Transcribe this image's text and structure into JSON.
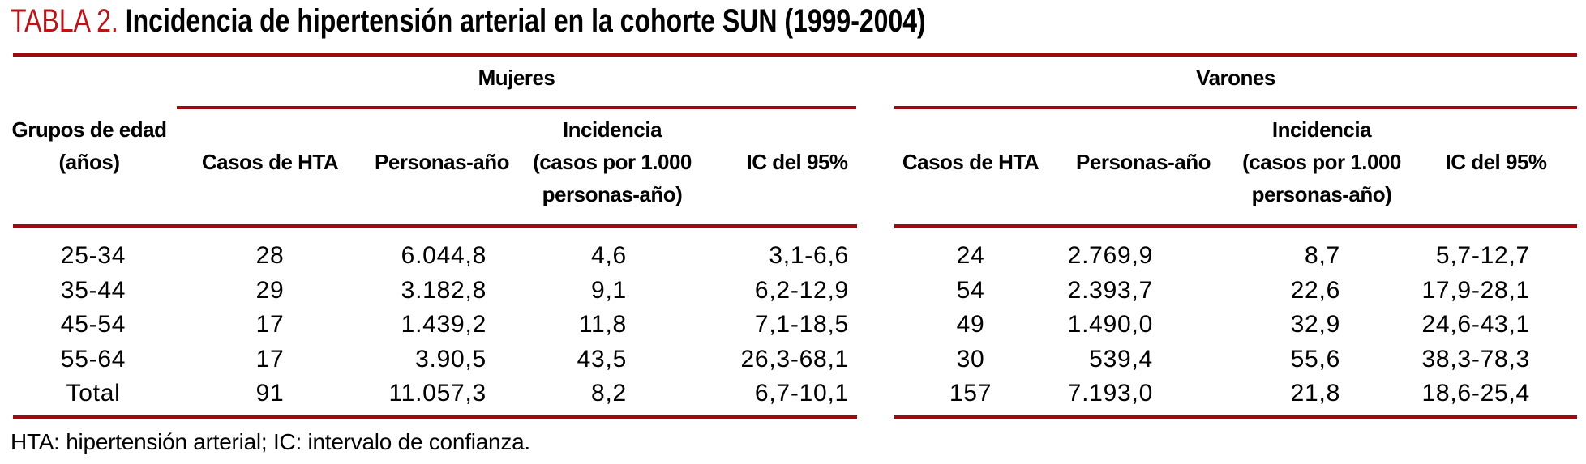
{
  "title": {
    "label": "TABLA 2.",
    "text": " Incidencia de hipertensión arterial en la cohorte SUN (1999-2004)"
  },
  "groups": {
    "mujeres": "Mujeres",
    "varones": "Varones"
  },
  "columns": {
    "age_line1": "Grupos de edad",
    "age_line2": "(años)",
    "casos": "Casos de HTA",
    "personas": "Personas-año",
    "incidencia_line1": "Incidencia",
    "incidencia_line2": "(casos por 1.000",
    "incidencia_line3": "personas-año)",
    "ic": "IC del 95%"
  },
  "rows": [
    {
      "age": "25-34",
      "m_casos": "28",
      "m_personas": "6.044,8",
      "m_incidencia": "4,6",
      "m_ic": "3,1-6,6",
      "v_casos": "24",
      "v_personas": "2.769,9",
      "v_incidencia": "8,7",
      "v_ic": "5,7-12,7"
    },
    {
      "age": "35-44",
      "m_casos": "29",
      "m_personas": "3.182,8",
      "m_incidencia": "9,1",
      "m_ic": "6,2-12,9",
      "v_casos": "54",
      "v_personas": "2.393,7",
      "v_incidencia": "22,6",
      "v_ic": "17,9-28,1"
    },
    {
      "age": "45-54",
      "m_casos": "17",
      "m_personas": "1.439,2",
      "m_incidencia": "11,8",
      "m_ic": "7,1-18,5",
      "v_casos": "49",
      "v_personas": "1.490,0",
      "v_incidencia": "32,9",
      "v_ic": "24,6-43,1"
    },
    {
      "age": "55-64",
      "m_casos": "17",
      "m_personas": "3.90,5",
      "m_incidencia": "43,5",
      "m_ic": "26,3-68,1",
      "v_casos": "30",
      "v_personas": "539,4",
      "v_incidencia": "55,6",
      "v_ic": "38,3-78,3"
    },
    {
      "age": "Total",
      "m_casos": "91",
      "m_personas": "11.057,3",
      "m_incidencia": "8,2",
      "m_ic": "6,7-10,1",
      "v_casos": "157",
      "v_personas": "7.193,0",
      "v_incidencia": "21,8",
      "v_ic": "18,6-25,4"
    }
  ],
  "footnote": "HTA: hipertensión arterial; IC: intervalo de confianza.",
  "colors": {
    "rule_red": "#9e0a0f",
    "title_red": "#b4161b"
  }
}
